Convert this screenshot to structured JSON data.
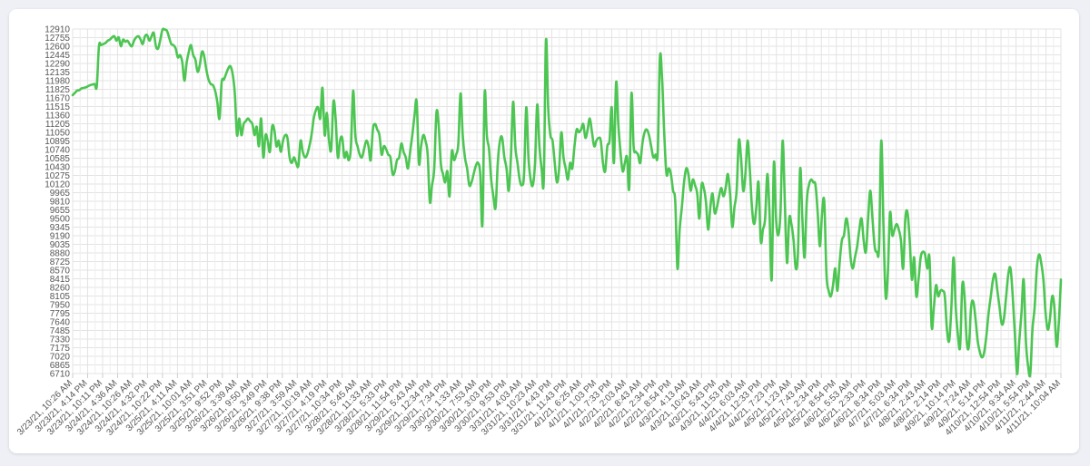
{
  "chart_data": {
    "type": "line",
    "title": "",
    "xlabel": "",
    "ylabel": "",
    "ylim": [
      6710,
      12910
    ],
    "grid": true,
    "colors": {
      "line": "#4cc552",
      "grid": "#e3e3e3"
    },
    "y_ticks": [
      "12910",
      "12755",
      "12600",
      "12445",
      "12290",
      "12135",
      "11980",
      "11825",
      "11670",
      "11515",
      "11360",
      "11205",
      "11050",
      "10895",
      "10740",
      "10585",
      "10430",
      "10275",
      "10120",
      "9965",
      "9810",
      "9655",
      "9500",
      "9345",
      "9190",
      "9035",
      "8880",
      "8725",
      "8570",
      "8415",
      "8260",
      "8105",
      "7950",
      "7795",
      "7640",
      "7485",
      "7330",
      "7175",
      "7020",
      "6865",
      "6710"
    ],
    "x_ticks": [
      "3/23/21, 10:26 AM",
      "3/23/21, 4:14 PM",
      "3/23/21, 10:11 PM",
      "3/24/21, 4:36 AM",
      "3/24/21, 10:26 AM",
      "3/24/21, 4:32 PM",
      "3/24/21, 10:22 PM",
      "3/25/21, 4:11 AM",
      "3/25/21, 10:01 AM",
      "3/25/21, 3:51 PM",
      "3/25/21, 9:52 PM",
      "3/26/21, 3:39 AM",
      "3/26/21, 9:50 AM",
      "3/26/21, 3:49 PM",
      "3/26/21, 9:38 PM",
      "3/27/21, 3:59 AM",
      "3/27/21, 10:19 AM",
      "3/27/21, 4:19 PM",
      "3/27/21, 10:34 PM",
      "3/28/21, 5:45 AM",
      "3/28/21, 11:33 AM",
      "3/28/21, 5:33 PM",
      "3/28/21, 11:54 PM",
      "3/29/21, 5:43 AM",
      "3/29/21, 12:34 PM",
      "3/29/21, 7:34 PM",
      "3/30/21, 1:33 AM",
      "3/30/21, 7:53 AM",
      "3/30/21, 3:03 PM",
      "3/30/21, 9:53 PM",
      "3/31/21, 4:03 AM",
      "3/31/21, 10:23 AM",
      "3/31/21, 4:43 PM",
      "3/31/21, 11:43 PM",
      "4/1/21, 6:25 AM",
      "4/1/21, 1:03 PM",
      "4/1/21, 7:33 PM",
      "4/2/21, 2:03 AM",
      "4/2/21, 8:43 AM",
      "4/2/21, 2:34 PM",
      "4/2/21, 8:54 PM",
      "4/3/21, 4:13 AM",
      "4/3/21, 10:43 AM",
      "4/3/21, 5:43 PM",
      "4/3/21, 11:53 PM",
      "4/4/21, 6:03 AM",
      "4/4/21, 12:33 PM",
      "4/4/21, 7:23 PM",
      "4/5/21, 1:23 AM",
      "4/5/21, 7:43 AM",
      "4/5/21, 2:34 PM",
      "4/5/21, 8:54 PM",
      "4/6/21, 5:53 AM",
      "4/6/21, 2:33 PM",
      "4/6/21, 8:34 PM",
      "4/7/21, 5:03 AM",
      "4/7/21, 6:34 PM",
      "4/8/21, 2:43 AM",
      "4/8/21, 2:14 PM",
      "4/9/21, 10:14 PM",
      "4/9/21, 7:24 AM",
      "4/9/21, 5:14 PM",
      "4/10/21, 12:54 PM",
      "4/10/21, 9:34 AM",
      "4/10/21, 5:54 PM",
      "4/11/21, 2:44 AM",
      "4/11/21, 10:04 AM"
    ],
    "series": [
      {
        "values": [
          11720,
          11760,
          11800,
          11810,
          11840,
          11850,
          11860,
          11880,
          11900,
          11910,
          11920,
          11880,
          12600,
          12620,
          12640,
          12660,
          12700,
          12720,
          12760,
          12780,
          12700,
          12760,
          12600,
          12720,
          12680,
          12700,
          12640,
          12600,
          12700,
          12760,
          12780,
          12720,
          12640,
          12780,
          12800,
          12700,
          12780,
          12840,
          12600,
          12560,
          12720,
          12900,
          12900,
          12880,
          12760,
          12640,
          12620,
          12560,
          12400,
          12440,
          12320,
          11980,
          12300,
          12500,
          12620,
          12440,
          12360,
          12140,
          12260,
          12500,
          12420,
          12180,
          12000,
          11920,
          11900,
          11800,
          11600,
          11300,
          11950,
          12000,
          12100,
          12200,
          12240,
          12100,
          11750,
          11000,
          11300,
          11000,
          11200,
          11250,
          11300,
          11250,
          11200,
          11000,
          11150,
          10800,
          11300,
          10600,
          11000,
          10900,
          10700,
          11150,
          11100,
          10800,
          10900,
          10700,
          10900,
          11000,
          10950,
          10600,
          10500,
          10600,
          10500,
          10450,
          10900,
          10700,
          10600,
          10650,
          10800,
          11000,
          11300,
          11450,
          11500,
          11300,
          11850,
          11000,
          11400,
          10900,
          10750,
          11600,
          11300,
          10600,
          10900,
          10950,
          10600,
          10700,
          10550,
          10800,
          11800,
          11000,
          10800,
          10650,
          10600,
          10750,
          10900,
          10800,
          10550,
          11100,
          11200,
          11100,
          11000,
          10650,
          10800,
          10750,
          10650,
          10600,
          10300,
          10350,
          10550,
          10600,
          10850,
          10700,
          10600,
          10400,
          10700,
          11000,
          11350,
          11600,
          10500,
          10800,
          11000,
          10900,
          10650,
          9800,
          10100,
          10400,
          11400,
          11200,
          10500,
          10300,
          10150,
          10350,
          9900,
          10700,
          10550,
          10650,
          10850,
          11750,
          11000,
          10600,
          10400,
          10100,
          10150,
          10300,
          10450,
          10500,
          10300,
          9400,
          11750,
          11000,
          10750,
          10200,
          9900,
          9700,
          10500,
          10900,
          10950,
          10600,
          10400,
          10000,
          10600,
          11600,
          10800,
          10500,
          10200,
          10100,
          10300,
          11500,
          10600,
          10200,
          10100,
          10500,
          11550,
          10800,
          10400,
          10200,
          12700,
          11500,
          11000,
          10900,
          10500,
          10150,
          10400,
          11050,
          10600,
          10400,
          10200,
          10500,
          10400,
          10800,
          11100,
          11050,
          11100,
          11200,
          10950,
          11100,
          11300,
          11050,
          10800,
          10900,
          10950,
          10900,
          10500,
          10350,
          10800,
          10900,
          11500,
          10500,
          11950,
          11200,
          10700,
          10350,
          10500,
          10600,
          10050,
          11750,
          10800,
          10700,
          10650,
          10500,
          10850,
          11050,
          11100,
          11000,
          10800,
          10600,
          10650,
          10700,
          12400,
          12000,
          11000,
          10300,
          10400,
          10300,
          10000,
          9800,
          8600,
          9300,
          9700,
          10150,
          10400,
          10300,
          10000,
          10200,
          10100,
          9950,
          9500,
          10100,
          10050,
          9800,
          9300,
          9700,
          9950,
          9600,
          9700,
          9900,
          10050,
          9900,
          10050,
          10300,
          9950,
          9350,
          9700,
          10000,
          10900,
          10600,
          10000,
          10300,
          10900,
          10400,
          9700,
          9400,
          9700,
          10150,
          9100,
          9300,
          9500,
          10300,
          9600,
          8400,
          10500,
          9500,
          9200,
          9600,
          10900,
          9800,
          8700,
          9500,
          9400,
          9100,
          8600,
          8900,
          10400,
          9500,
          8800,
          9800,
          10100,
          10200,
          10150,
          10100,
          9600,
          9000,
          9600,
          9800,
          8500,
          8200,
          8100,
          8300,
          8600,
          8200,
          8700,
          9100,
          9200,
          9500,
          9300,
          8800,
          8600,
          8800,
          9000,
          9300,
          9500,
          9100,
          8900,
          9500,
          10000,
          9500,
          9000,
          8900,
          9000,
          10900,
          9400,
          8100,
          8500,
          9600,
          9200,
          9300,
          9400,
          9300,
          9100,
          8600,
          9500,
          9600,
          9100,
          8400,
          8800,
          8100,
          8400,
          8800,
          8900,
          8850,
          8600,
          8800,
          7550,
          7900,
          8300,
          8100,
          8200,
          8200,
          8100,
          7500,
          7300,
          7900,
          8800,
          7900,
          7400,
          7200,
          8300,
          8100,
          7300,
          7200,
          7900,
          8000,
          7700,
          7300,
          7100,
          7000,
          7100,
          7400,
          7800,
          8100,
          8400,
          8500,
          8200,
          7900,
          7600,
          7700,
          8100,
          8500,
          8600,
          8100,
          7400,
          6700,
          7300,
          7800,
          8400,
          7300,
          6850,
          6700,
          7500,
          7900,
          8600,
          8850,
          8700,
          8400,
          7800,
          7500,
          7700,
          8100,
          7900,
          7200,
          7600,
          8400
        ]
      }
    ]
  }
}
